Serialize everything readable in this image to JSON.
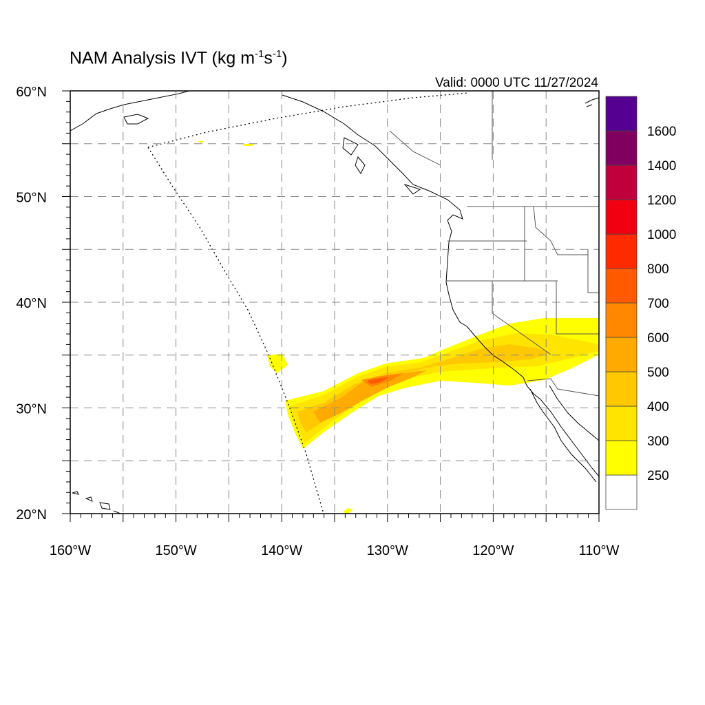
{
  "title": {
    "main": "NAM Analysis IVT (kg m",
    "sup1": "-1",
    "mid": "s",
    "sup2": "-1",
    "end": ")"
  },
  "valid_text": "Valid: 0000 UTC 11/27/2024",
  "axes": {
    "lat_ticks": [
      {
        "value": 60,
        "label": "60°N"
      },
      {
        "value": 50,
        "label": "50°N"
      },
      {
        "value": 40,
        "label": "40°N"
      },
      {
        "value": 30,
        "label": "30°N"
      },
      {
        "value": 20,
        "label": "20°N"
      }
    ],
    "lon_ticks": [
      {
        "value": -160,
        "label": "160°W"
      },
      {
        "value": -150,
        "label": "150°W"
      },
      {
        "value": -140,
        "label": "140°W"
      },
      {
        "value": -130,
        "label": "130°W"
      },
      {
        "value": -120,
        "label": "120°W"
      },
      {
        "value": -110,
        "label": "110°W"
      }
    ],
    "lat_range": [
      20,
      60
    ],
    "lon_range": [
      -160,
      -110
    ],
    "grid": true
  },
  "colorbar": {
    "colors": [
      "#ffffff",
      "#ffff00",
      "#ffe400",
      "#ffc800",
      "#ffaa00",
      "#ff8800",
      "#ff5a00",
      "#ff2a00",
      "#f00010",
      "#c0003c",
      "#800060",
      "#550090"
    ],
    "labels": [
      "250",
      "300",
      "400",
      "500",
      "600",
      "700",
      "800",
      "1000",
      "1200",
      "1400",
      "1600"
    ]
  },
  "chart_data": {
    "type": "heatmap",
    "variable": "IVT",
    "units": "kg m-1 s-1",
    "levels": [
      250,
      300,
      400,
      500,
      600,
      700,
      800,
      1000,
      1200,
      1400,
      1600
    ],
    "lon_range": [
      -160,
      -110
    ],
    "lat_range": [
      20,
      60
    ],
    "features": [
      {
        "name": "atmospheric river core",
        "approx_max_level": 700,
        "lon": -131,
        "lat": 32.5
      },
      {
        "name": "atmospheric river body",
        "approx_level": 400,
        "lon_span": [
          -139,
          -110
        ],
        "lat_span": [
          26,
          38
        ]
      }
    ]
  }
}
